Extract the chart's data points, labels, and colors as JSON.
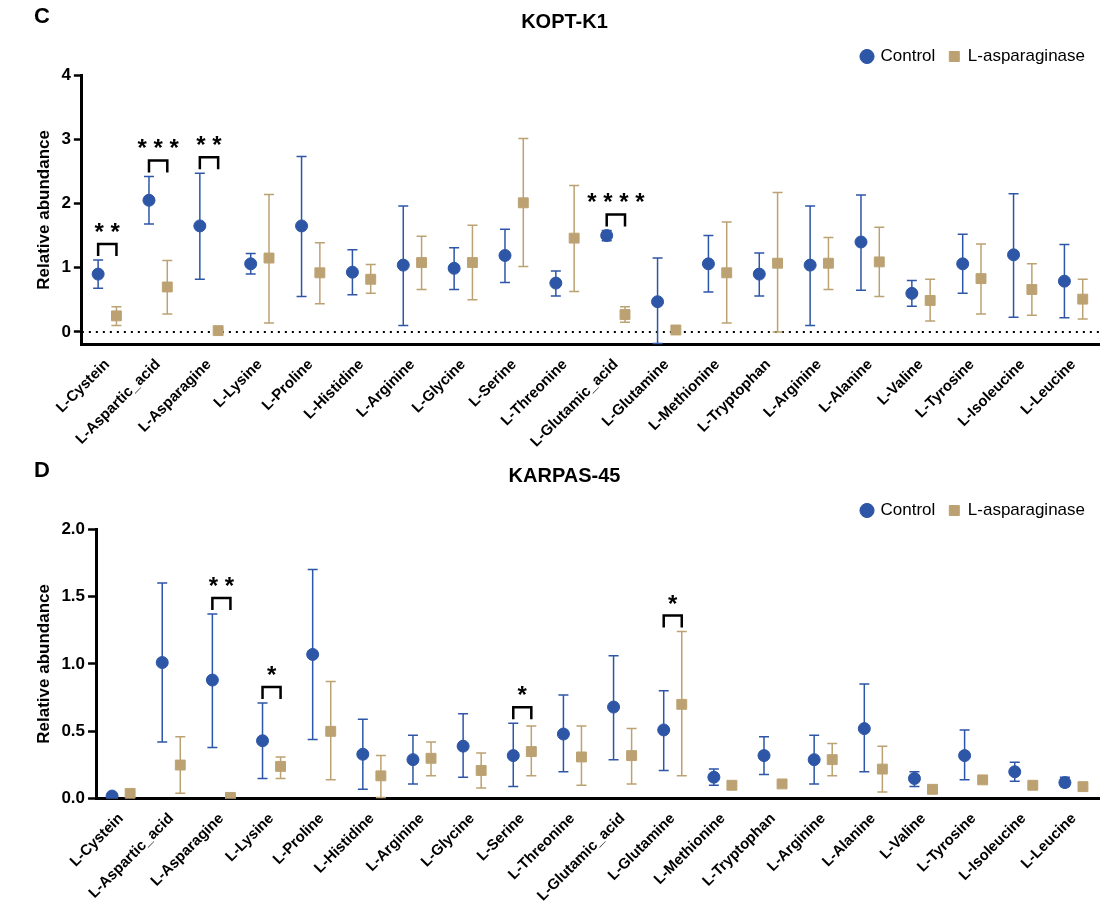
{
  "chart_data": [
    {
      "type": "scatter",
      "title": "KOPT-K1",
      "ylabel": "Relative abundance",
      "annotations": [
        "C",
        "* *",
        "* * *",
        "* *",
        "* * * *"
      ],
      "categories": [
        "L-Cystein",
        "L-Aspartic_acid",
        "L-Asparagine",
        "L-Lysine",
        "L-Proline",
        "L-Histidine",
        "L-Arginine",
        "L-Glycine",
        "L-Serine",
        "L-Threonine",
        "L-Glutamic_acid",
        "L-Glutamine",
        "L-Methionine",
        "L-Tryptophan",
        "L-Arginine",
        "L-Alanine",
        "L-Valine",
        "L-Tyrosine",
        "L-Isoleucine",
        "L-Leucine"
      ],
      "series": [
        {
          "name": "Control",
          "color": "#2e56a6",
          "marker": "circle",
          "values": [
            0.9,
            2.05,
            1.65,
            1.06,
            1.65,
            0.93,
            1.04,
            0.99,
            1.19,
            0.76,
            1.5,
            0.47,
            1.06,
            0.9,
            1.04,
            1.4,
            0.6,
            1.06,
            1.2,
            0.79
          ],
          "errors": [
            [
              0.68,
              1.12
            ],
            [
              1.68,
              2.42
            ],
            [
              0.82,
              2.47
            ],
            [
              0.9,
              1.22
            ],
            [
              0.55,
              2.73
            ],
            [
              0.58,
              1.28
            ],
            [
              0.1,
              1.96
            ],
            [
              0.66,
              1.31
            ],
            [
              0.77,
              1.6
            ],
            [
              0.56,
              0.95
            ],
            [
              1.42,
              1.58
            ],
            [
              -0.18,
              1.15
            ],
            [
              0.62,
              1.5
            ],
            [
              0.56,
              1.23
            ],
            [
              0.1,
              1.96
            ],
            [
              0.65,
              2.13
            ],
            [
              0.4,
              0.8
            ],
            [
              0.6,
              1.52
            ],
            [
              0.23,
              2.15
            ],
            [
              0.22,
              1.36
            ]
          ]
        },
        {
          "name": "L-asparaginase",
          "color": "#bca272",
          "marker": "square",
          "values": [
            0.25,
            0.7,
            0.02,
            1.15,
            0.92,
            0.82,
            1.08,
            1.08,
            2.01,
            1.46,
            0.27,
            0.03,
            0.92,
            1.07,
            1.07,
            1.09,
            0.49,
            0.83,
            0.66,
            0.51
          ],
          "errors": [
            [
              0.1,
              0.39
            ],
            [
              0.28,
              1.11
            ],
            null,
            [
              0.14,
              2.14
            ],
            [
              0.44,
              1.39
            ],
            [
              0.6,
              1.05
            ],
            [
              0.66,
              1.49
            ],
            [
              0.5,
              1.66
            ],
            [
              1.02,
              3.01
            ],
            [
              0.63,
              2.28
            ],
            [
              0.15,
              0.39
            ],
            null,
            [
              0.14,
              1.71
            ],
            [
              0,
              2.17
            ],
            [
              0.66,
              1.47
            ],
            [
              0.55,
              1.63
            ],
            [
              0.17,
              0.82
            ],
            [
              0.28,
              1.37
            ],
            [
              0.26,
              1.06
            ],
            [
              0.2,
              0.82
            ]
          ]
        }
      ],
      "ylim": [
        -0.2,
        4
      ],
      "yticks": [
        0,
        1,
        2,
        3,
        4
      ],
      "ref_lines": [
        {
          "axis": "y",
          "value": 0,
          "line_style": "dotted",
          "color": "#000000"
        }
      ],
      "legend": "top right",
      "grid": false
    },
    {
      "type": "scatter",
      "title": "KARPAS-45",
      "ylabel": "Relative abundance",
      "annotations": [
        "D",
        "* *",
        "*",
        "*",
        "*"
      ],
      "categories": [
        "L-Cystein",
        "L-Aspartic_acid",
        "L-Asparagine",
        "L-Lysine",
        "L-Proline",
        "L-Histidine",
        "L-Arginine",
        "L-Glycine",
        "L-Serine",
        "L-Threonine",
        "L-Glutamic_acid",
        "L-Glutamine",
        "L-Methionine",
        "L-Tryptophan",
        "L-Arginine",
        "L-Alanine",
        "L-Valine",
        "L-Tyrosine",
        "L-Isoleucine",
        "L-Leucine"
      ],
      "series": [
        {
          "name": "Control",
          "color": "#2e56a6",
          "marker": "circle",
          "values": [
            0.02,
            1.01,
            0.88,
            0.43,
            1.07,
            0.33,
            0.29,
            0.39,
            0.32,
            0.48,
            0.68,
            0.51,
            0.16,
            0.32,
            0.29,
            0.52,
            0.15,
            0.32,
            0.2,
            0.12
          ],
          "errors": [
            null,
            [
              0.42,
              1.6
            ],
            [
              0.38,
              1.37
            ],
            [
              0.15,
              0.71
            ],
            [
              0.44,
              1.7
            ],
            [
              0.07,
              0.59
            ],
            [
              0.11,
              0.47
            ],
            [
              0.16,
              0.63
            ],
            [
              0.09,
              0.56
            ],
            [
              0.2,
              0.77
            ],
            [
              0.29,
              1.06
            ],
            [
              0.21,
              0.8
            ],
            [
              0.1,
              0.22
            ],
            [
              0.18,
              0.46
            ],
            [
              0.11,
              0.47
            ],
            [
              0.2,
              0.85
            ],
            [
              0.09,
              0.2
            ],
            [
              0.14,
              0.51
            ],
            [
              0.13,
              0.27
            ],
            [
              0.09,
              0.16
            ]
          ]
        },
        {
          "name": "L-asparaginase",
          "color": "#bca272",
          "marker": "square",
          "values": [
            0.04,
            0.25,
            0.01,
            0.24,
            0.5,
            0.17,
            0.3,
            0.21,
            0.35,
            0.31,
            0.32,
            0.7,
            0.1,
            0.11,
            0.29,
            0.22,
            0.07,
            0.14,
            0.1,
            0.09
          ],
          "errors": [
            null,
            [
              0.04,
              0.46
            ],
            null,
            [
              0.15,
              0.31
            ],
            [
              0.14,
              0.87
            ],
            [
              0.01,
              0.32
            ],
            [
              0.17,
              0.42
            ],
            [
              0.08,
              0.34
            ],
            [
              0.17,
              0.54
            ],
            [
              0.1,
              0.54
            ],
            [
              0.11,
              0.52
            ],
            [
              0.17,
              1.24
            ],
            [
              0.07,
              0.12
            ],
            null,
            [
              0.17,
              0.41
            ],
            [
              0.05,
              0.39
            ],
            null,
            null,
            null,
            null
          ]
        }
      ],
      "ylim": [
        0,
        2
      ],
      "yticks": [
        {
          "value": 0,
          "label": "0.0"
        },
        {
          "value": 0.5,
          "label": "0.5"
        },
        {
          "value": 1,
          "label": "1.0"
        },
        {
          "value": 1.5,
          "label": "1.5"
        },
        {
          "value": 2,
          "label": "2.0"
        }
      ],
      "legend": "top right",
      "grid": false
    }
  ]
}
